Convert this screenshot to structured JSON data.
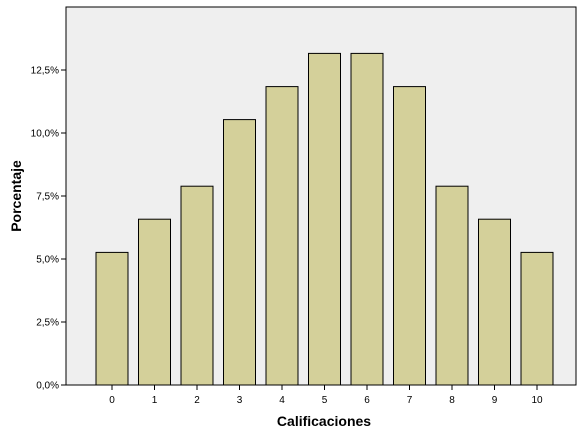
{
  "chart_data": {
    "type": "bar",
    "xlabel": "Calificaciones",
    "ylabel": "Porcentaje",
    "categories": [
      "0",
      "1",
      "2",
      "3",
      "4",
      "5",
      "6",
      "7",
      "8",
      "9",
      "10"
    ],
    "values": [
      5.26,
      6.58,
      7.89,
      10.53,
      11.84,
      13.16,
      13.16,
      11.84,
      7.89,
      6.58,
      5.26
    ],
    "ylim": [
      0,
      15
    ],
    "yticks": [
      0,
      2.5,
      5,
      7.5,
      10,
      12.5
    ],
    "ytick_labels": [
      "0,0%",
      "2,5%",
      "5,0%",
      "7,5%",
      "10,0%",
      "12,5%"
    ],
    "grid": false,
    "legend": "none",
    "colors": {
      "bar_fill": "#d4d09a",
      "bar_stroke": "#000000",
      "plot_background": "#efefef"
    }
  }
}
